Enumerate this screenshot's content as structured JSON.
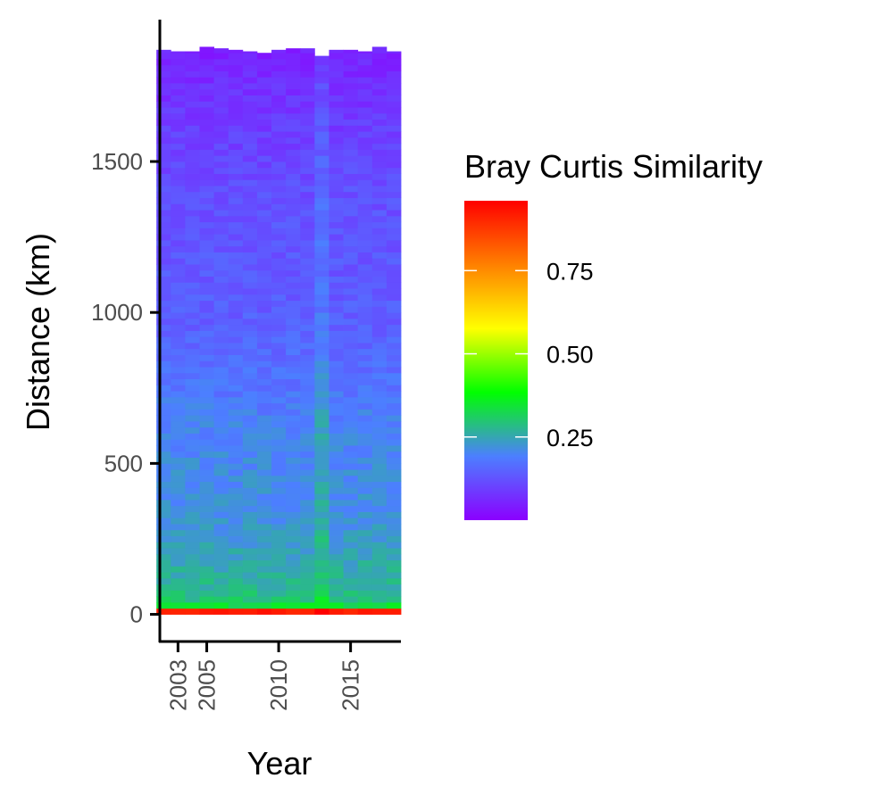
{
  "chart_data": {
    "type": "heatmap",
    "title": "",
    "xlabel": "Year",
    "ylabel": "Distance (km)",
    "x_ticks": [
      2003,
      2005,
      2010,
      2015
    ],
    "x_tick_labels": [
      "2003",
      "2005",
      "2010",
      "2015"
    ],
    "y_ticks": [
      0,
      500,
      1000,
      1500
    ],
    "y_tick_labels": [
      "0",
      "500",
      "1000",
      "1500"
    ],
    "years": [
      2002,
      2003,
      2004,
      2005,
      2006,
      2007,
      2008,
      2009,
      2010,
      2011,
      2012,
      2013,
      2014,
      2015,
      2016,
      2017,
      2018
    ],
    "max_distance_by_year": [
      1870,
      1865,
      1865,
      1880,
      1875,
      1870,
      1865,
      1860,
      1870,
      1875,
      1875,
      1850,
      1870,
      1870,
      1865,
      1880,
      1865
    ],
    "xlim": [
      2001.8,
      2018.5
    ],
    "ylim": [
      -90,
      1970
    ],
    "distance_profile": {
      "distance_km": [
        0,
        15,
        40,
        100,
        300,
        600,
        1000,
        1400,
        1700,
        1880
      ],
      "similarity": [
        0.93,
        0.4,
        0.3,
        0.27,
        0.22,
        0.2,
        0.14,
        0.12,
        0.08,
        0.05
      ]
    },
    "highlight_year": 2013,
    "legend": {
      "title": "Bray Curtis Similarity",
      "position": "right",
      "range": [
        0.0,
        0.96
      ],
      "ticks": [
        0.25,
        0.5,
        0.75
      ],
      "tick_labels": [
        "0.25",
        "0.50",
        "0.75"
      ],
      "colors": [
        "#8B00FF",
        "#4C7FFF",
        "#00FF00",
        "#FFFF00",
        "#FF8000",
        "#FF0000"
      ]
    },
    "grid": false
  }
}
